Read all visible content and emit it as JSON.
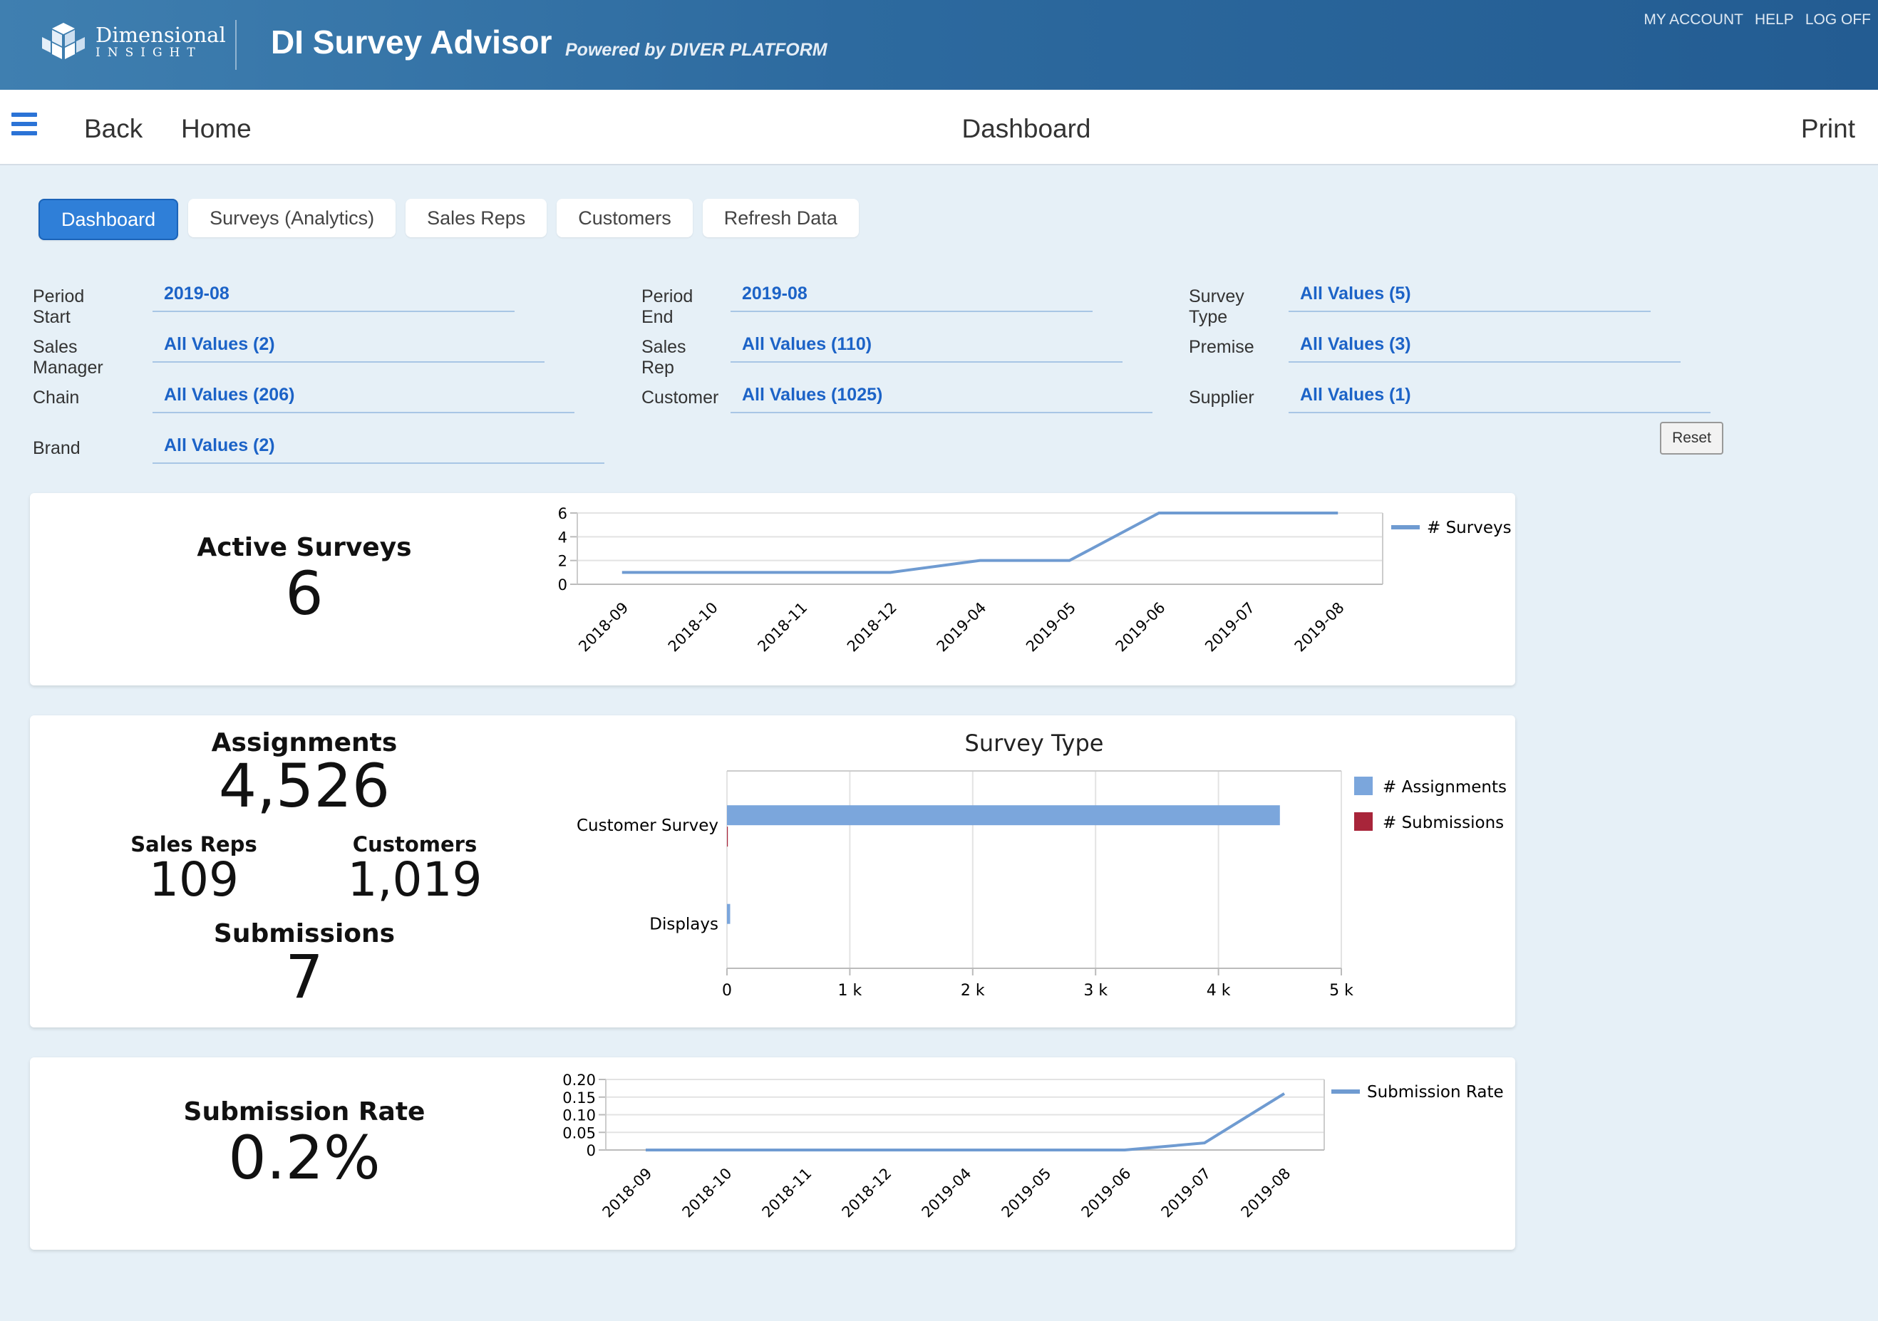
{
  "header": {
    "logo_line1": "Dimensional",
    "logo_line2": "INSIGHT",
    "title": "DI Survey Advisor",
    "subtitle": "Powered by DIVER PLATFORM",
    "links": [
      "MY ACCOUNT",
      "HELP",
      "LOG OFF"
    ],
    "colors": {
      "brand": "#2d6a9f",
      "accent": "#2f7fd8"
    }
  },
  "nav": {
    "menu_icon": "hamburger-icon",
    "back": "Back",
    "home": "Home",
    "title": "Dashboard",
    "print": "Print"
  },
  "tabs": [
    {
      "label": "Dashboard",
      "active": true
    },
    {
      "label": "Surveys (Analytics)",
      "active": false
    },
    {
      "label": "Sales Reps",
      "active": false
    },
    {
      "label": "Customers",
      "active": false
    },
    {
      "label": "Refresh Data",
      "active": false
    }
  ],
  "filters": [
    {
      "label": "Period Start",
      "value": "2019-08"
    },
    {
      "label": "Period End",
      "value": "2019-08"
    },
    {
      "label": "Survey Type",
      "value": "All Values (5)"
    },
    {
      "label": "Sales Manager",
      "value": "All Values (2)"
    },
    {
      "label": "Sales Rep",
      "value": "All Values (110)"
    },
    {
      "label": "Premise",
      "value": "All Values (3)"
    },
    {
      "label": "Chain",
      "value": "All Values (206)"
    },
    {
      "label": "Customer",
      "value": "All Values (1025)"
    },
    {
      "label": "Supplier",
      "value": "All Values (1)"
    },
    {
      "label": "Brand",
      "value": "All Values (2)"
    }
  ],
  "reset_label": "Reset",
  "kpis": {
    "active_surveys": {
      "label": "Active Surveys",
      "value": "6"
    },
    "assignments": {
      "label": "Assignments",
      "value": "4,526"
    },
    "sales_reps": {
      "label": "Sales Reps",
      "value": "109"
    },
    "customers": {
      "label": "Customers",
      "value": "1,019"
    },
    "submissions": {
      "label": "Submissions",
      "value": "7"
    },
    "submission_rate": {
      "label": "Submission Rate",
      "value": "0.2%"
    }
  },
  "chart_data": [
    {
      "type": "line",
      "title": "",
      "x": [
        "2018-09",
        "2018-10",
        "2018-11",
        "2018-12",
        "2019-04",
        "2019-05",
        "2019-06",
        "2019-07",
        "2019-08"
      ],
      "series": [
        {
          "name": "# Surveys",
          "values": [
            1,
            1,
            1,
            1,
            2,
            2,
            6,
            6,
            6
          ],
          "color": "#6f9bd1"
        }
      ],
      "ylim": [
        0,
        6
      ],
      "yticks": [
        "0",
        "2",
        "4",
        "6"
      ],
      "legend": "right",
      "grid": true
    },
    {
      "type": "bar",
      "orientation": "horizontal",
      "title": "Survey Type",
      "categories": [
        "Customer Survey",
        "Displays"
      ],
      "series": [
        {
          "name": "# Assignments",
          "values": [
            4500,
            26
          ],
          "color": "#7ba6dc"
        },
        {
          "name": "# Submissions",
          "values": [
            7,
            0
          ],
          "color": "#a8253a"
        }
      ],
      "xlim": [
        0,
        5000
      ],
      "xticks": [
        "0",
        "1 k",
        "2 k",
        "3 k",
        "4 k",
        "5 k"
      ],
      "legend": "right",
      "grid": true
    },
    {
      "type": "line",
      "title": "",
      "x": [
        "2018-09",
        "2018-10",
        "2018-11",
        "2018-12",
        "2019-04",
        "2019-05",
        "2019-06",
        "2019-07",
        "2019-08"
      ],
      "series": [
        {
          "name": "Submission Rate",
          "values": [
            0,
            0,
            0,
            0,
            0,
            0,
            0,
            0.02,
            0.16
          ],
          "color": "#6f9bd1"
        }
      ],
      "ylim": [
        0,
        0.2
      ],
      "yticks": [
        "0",
        "0.05",
        "0.10",
        "0.15",
        "0.20"
      ],
      "legend": "right",
      "grid": true
    }
  ]
}
